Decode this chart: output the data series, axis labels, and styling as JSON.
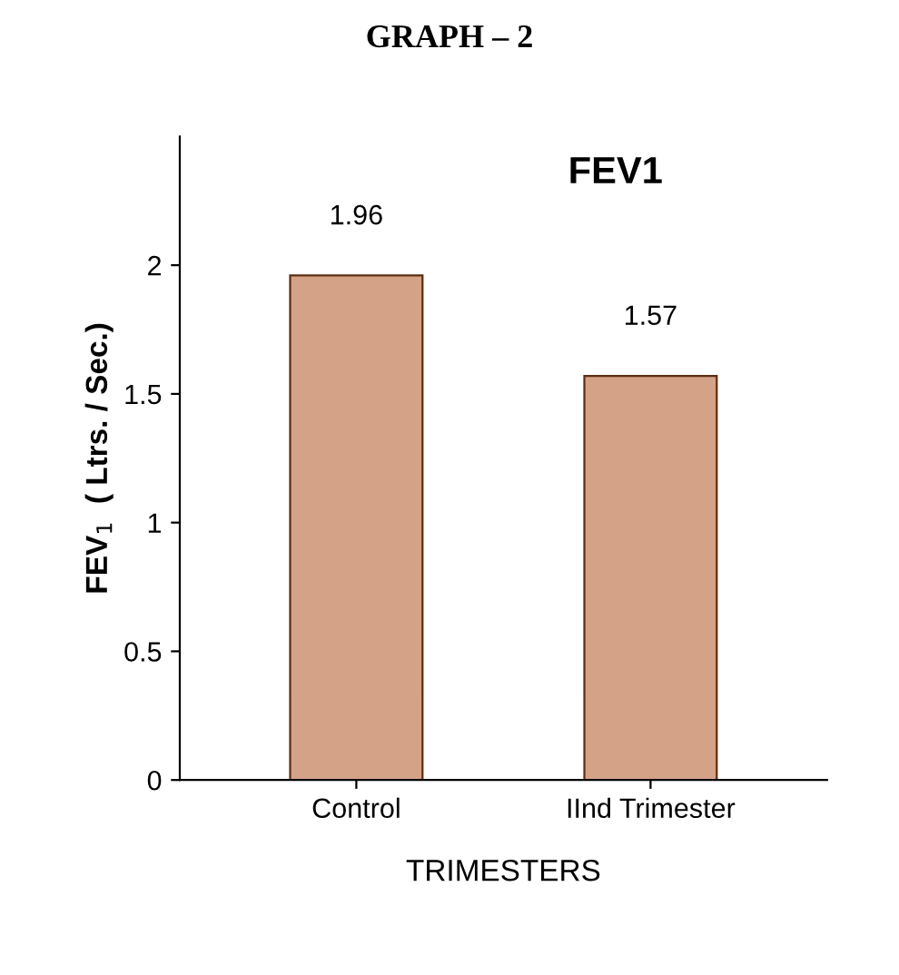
{
  "chart_data": {
    "type": "bar",
    "title": "GRAPH – 2",
    "subtitle": "FEV1",
    "xlabel": "TRIMESTERS",
    "ylabel": "FEV$_{1}$  ( Ltrs. / Sec.)",
    "categories": [
      "Control",
      "IInd Trimester"
    ],
    "values": [
      1.96,
      1.57
    ],
    "color": "#d4a287",
    "ylim": [
      0,
      2.5
    ],
    "yticks": [
      0,
      0.5,
      1,
      1.5,
      2
    ],
    "grid": false,
    "legend": false,
    "data_labels": true
  }
}
